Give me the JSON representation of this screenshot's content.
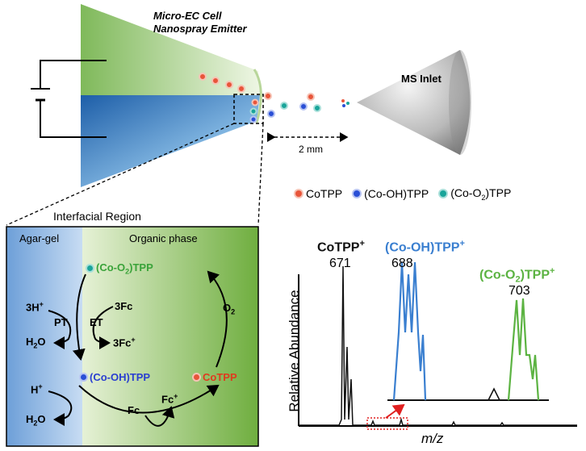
{
  "emitter": {
    "title_line1": "Micro-EC Cell",
    "title_line2": "Nanospray Emitter",
    "inlet_label": "MS Inlet",
    "distance_label": "2 mm"
  },
  "legend": {
    "items": [
      {
        "label": "CoTPP",
        "color": "#e8553a"
      },
      {
        "label": "(Co-OH)TPP",
        "color": "#2a4fd6"
      },
      {
        "label": "(Co-O",
        "sub": "2",
        "suffix": ")TPP",
        "color": "#1aa59a"
      }
    ]
  },
  "interface": {
    "title": "Interfacial Region",
    "left_phase": "Agar-gel",
    "right_phase": "Organic phase",
    "species": {
      "co_o2": {
        "pre": "(Co-O",
        "sub": "2",
        "post": ")TPP",
        "color": "#3aa33a"
      },
      "co_oh": {
        "text": "(Co-OH)TPP",
        "color": "#2a3fd0"
      },
      "cotpp": {
        "text": "CoTPP",
        "color": "#e03a1e"
      }
    },
    "labels": {
      "h3": "3H",
      "h3_sup": "+",
      "fc3": "3Fc",
      "pt": "PT",
      "et": "ET",
      "h2o_1": "H",
      "h2o_1_sub": "2",
      "h2o_1_post": "O",
      "fc3p": "3Fc",
      "fc3p_sup": "+",
      "o2": "O",
      "o2_sub": "2",
      "hplus": "H",
      "hplus_sup": "+",
      "h2o_2": "H",
      "h2o_2_sub": "2",
      "h2o_2_post": "O",
      "fc": "Fc",
      "fcp": "Fc",
      "fcp_sup": "+"
    }
  },
  "spectrum": {
    "ylabel": "Relative Abundance",
    "xlabel": "m/z",
    "peaks": [
      {
        "name": "CoTPP",
        "sup": "+",
        "mz": "671",
        "color": "#111111"
      },
      {
        "name": "(Co-OH)TPP",
        "sup": "+",
        "mz": "688",
        "color": "#3a7fd0"
      },
      {
        "name": "(Co-O",
        "sub": "2",
        "post": ")TPP",
        "sup": "+",
        "mz": "703",
        "color": "#5cb342"
      }
    ]
  },
  "chart_data": {
    "type": "line",
    "xlabel": "m/z",
    "ylabel": "Relative Abundance",
    "series": [
      {
        "name": "CoTPP+",
        "peak_mz": 671,
        "color": "#111111"
      },
      {
        "name": "(Co-OH)TPP+",
        "peak_mz": 688,
        "color": "#3a7fd0"
      },
      {
        "name": "(Co-O2)TPP+",
        "peak_mz": 703,
        "color": "#5cb342"
      }
    ]
  }
}
